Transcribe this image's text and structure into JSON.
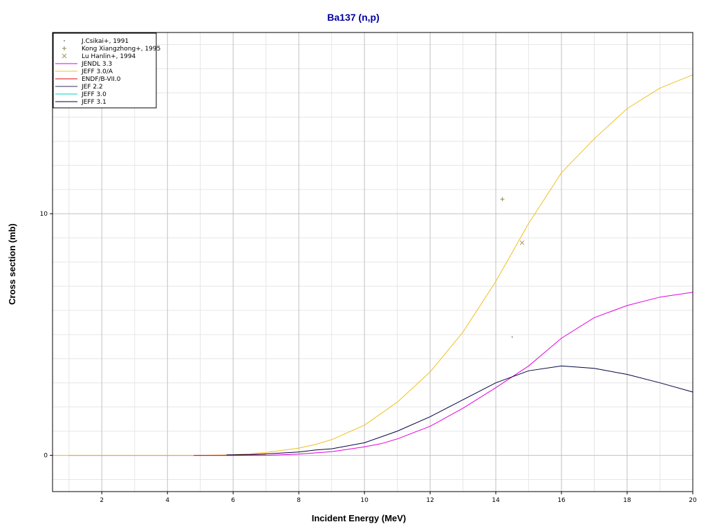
{
  "chart_data": {
    "type": "line",
    "title": "Ba137 (n,p)",
    "xlabel": "Incident Energy (MeV)",
    "ylabel": "Cross section (mb)",
    "xlim": [
      0.5,
      20
    ],
    "ylim": [
      -1.5,
      17.5
    ],
    "x_ticks": [
      2,
      4,
      6,
      8,
      10,
      12,
      14,
      16,
      18,
      20
    ],
    "y_ticks": [
      0,
      10
    ],
    "grid": true,
    "legend_position": "top-left",
    "colors": {
      "title": "#0000a0",
      "grid_major": "#c0c0c0",
      "grid_minor": "#e6e6e6"
    },
    "series": [
      {
        "name": "J.Csikai+, 1991",
        "kind": "points",
        "marker": "dot",
        "color": "#808080",
        "points": [
          [
            14.5,
            4.9
          ]
        ]
      },
      {
        "name": "Kong Xiangzhong+, 1995",
        "kind": "points",
        "marker": "plus",
        "color": "#8a8a4a",
        "points": [
          [
            14.2,
            10.6
          ]
        ]
      },
      {
        "name": "Lu Hanlin+, 1994",
        "kind": "points",
        "marker": "cross",
        "color": "#a09060",
        "points": [
          [
            14.8,
            8.8
          ]
        ]
      },
      {
        "name": "JENDL 3.3",
        "kind": "line",
        "color": "#e000e0",
        "points": [
          [
            1,
            0
          ],
          [
            5,
            0
          ],
          [
            7,
            0
          ],
          [
            8,
            0.05
          ],
          [
            9,
            0.15
          ],
          [
            10,
            0.35
          ],
          [
            10.5,
            0.48
          ],
          [
            11,
            0.68
          ],
          [
            12,
            1.2
          ],
          [
            13,
            1.95
          ],
          [
            14,
            2.8
          ],
          [
            15,
            3.7
          ],
          [
            16,
            4.85
          ],
          [
            17,
            5.7
          ],
          [
            18,
            6.2
          ],
          [
            19,
            6.55
          ],
          [
            20,
            6.75
          ]
        ]
      },
      {
        "name": "JEFF 3.0/A",
        "kind": "line",
        "color": "#f0c020",
        "points": [
          [
            0.5,
            0
          ],
          [
            5,
            0
          ],
          [
            6,
            0.02
          ],
          [
            7,
            0.12
          ],
          [
            8,
            0.3
          ],
          [
            8.5,
            0.45
          ],
          [
            9,
            0.65
          ],
          [
            10,
            1.25
          ],
          [
            11,
            2.2
          ],
          [
            12,
            3.45
          ],
          [
            13,
            5.1
          ],
          [
            14,
            7.2
          ],
          [
            15,
            9.6
          ],
          [
            16,
            11.7
          ],
          [
            17,
            13.1
          ],
          [
            18,
            14.35
          ],
          [
            19,
            15.2
          ],
          [
            20,
            15.75
          ]
        ]
      },
      {
        "name": "ENDF/B-VII.0",
        "kind": "line",
        "color": "#e00000",
        "points": [
          [
            4.8,
            0
          ],
          [
            6,
            0
          ],
          [
            6.5,
            0.02
          ],
          [
            7,
            0.05
          ]
        ]
      },
      {
        "name": "JEF 2.2",
        "kind": "line",
        "color": "#303060",
        "points": []
      },
      {
        "name": "JEFF 3.0",
        "kind": "line",
        "color": "#00d0c0",
        "points": []
      },
      {
        "name": "JEFF 3.1",
        "kind": "line",
        "color": "#000040",
        "points": [
          [
            5.8,
            0.02
          ],
          [
            6.5,
            0.03
          ],
          [
            7,
            0.06
          ],
          [
            8,
            0.14
          ],
          [
            8.5,
            0.22
          ],
          [
            9,
            0.27
          ],
          [
            10,
            0.52
          ],
          [
            11,
            1.0
          ],
          [
            12,
            1.6
          ],
          [
            13,
            2.3
          ],
          [
            14,
            3.0
          ],
          [
            15,
            3.5
          ],
          [
            16,
            3.7
          ],
          [
            17,
            3.6
          ],
          [
            18,
            3.35
          ],
          [
            19,
            3.0
          ],
          [
            20,
            2.62
          ]
        ]
      }
    ]
  }
}
